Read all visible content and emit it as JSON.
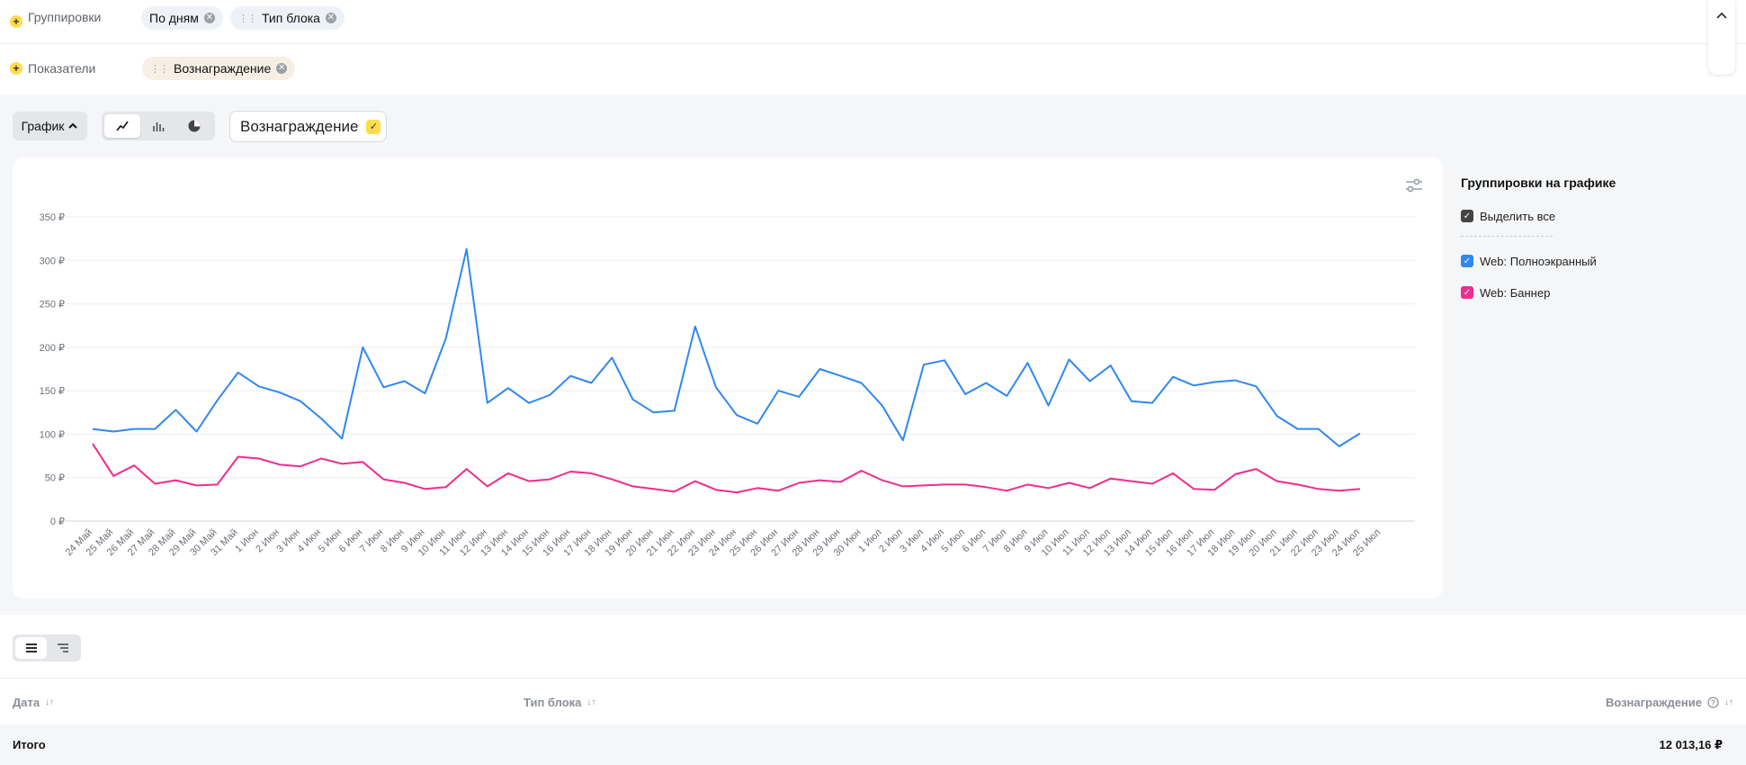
{
  "filters": {
    "groupings_label": "Группировки",
    "grouping_chips": [
      "По дням",
      "Тип блока"
    ],
    "metrics_label": "Показатели",
    "metric_chips": [
      "Вознаграждение"
    ]
  },
  "toolbar": {
    "view_label": "График",
    "chart_types": [
      "line-chart-icon",
      "bar-chart-icon",
      "pie-chart-icon"
    ],
    "active_chart_type": "line",
    "metric_toggle_label": "Вознаграждение"
  },
  "legend": {
    "title": "Группировки на графике",
    "select_all": "Выделить все",
    "items": [
      {
        "label": "Web: Полноэкранный",
        "color": "#2f88f0"
      },
      {
        "label": "Web: Баннер",
        "color": "#f02c8f"
      }
    ]
  },
  "chart_data": {
    "type": "line",
    "title": "",
    "xlabel": "",
    "ylabel": "",
    "ylim": [
      0,
      350
    ],
    "y_ticks": [
      "0 ₽",
      "50 ₽",
      "100 ₽",
      "150 ₽",
      "200 ₽",
      "250 ₽",
      "300 ₽",
      "350 ₽"
    ],
    "x": [
      "24 Май",
      "25 Май",
      "26 Май",
      "27 Май",
      "28 Май",
      "29 Май",
      "30 Май",
      "31 Май",
      "1 Июн",
      "2 Июн",
      "3 Июн",
      "4 Июн",
      "5 Июн",
      "6 Июн",
      "7 Июн",
      "8 Июн",
      "9 Июн",
      "10 Июн",
      "11 Июн",
      "12 Июн",
      "13 Июн",
      "14 Июн",
      "15 Июн",
      "16 Июн",
      "17 Июн",
      "18 Июн",
      "19 Июн",
      "20 Июн",
      "21 Июн",
      "22 Июн",
      "23 Июн",
      "24 Июн",
      "25 Июн",
      "26 Июн",
      "27 Июн",
      "28 Июн",
      "29 Июн",
      "30 Июн",
      "1 Июл",
      "2 Июл",
      "3 Июл",
      "4 Июл",
      "5 Июл",
      "6 Июл",
      "7 Июл",
      "8 Июл",
      "9 Июл",
      "10 Июл",
      "11 Июл",
      "12 Июл",
      "13 Июл",
      "14 Июл",
      "15 Июл",
      "16 Июл",
      "17 Июл",
      "18 Июл",
      "19 Июл",
      "20 Июл",
      "21 Июл",
      "22 Июл",
      "23 Июл",
      "24 Июл",
      "25 Июл"
    ],
    "grid": true,
    "legend_position": "right",
    "series": [
      {
        "name": "Web: Полноэкранный",
        "color": "#2f88f0",
        "values": [
          106,
          103,
          106,
          106,
          128,
          103,
          139,
          171,
          155,
          148,
          138,
          118,
          95,
          200,
          154,
          161,
          147,
          210,
          313,
          136,
          153,
          136,
          145,
          167,
          159,
          188,
          140,
          125,
          127,
          224,
          154,
          122,
          112,
          150,
          143,
          175,
          167,
          159,
          133,
          93,
          180,
          185,
          146,
          159,
          144,
          182,
          133,
          186,
          161,
          179,
          138,
          136,
          166,
          156,
          160,
          162,
          155,
          121,
          106,
          106,
          86,
          101,
          null
        ]
      },
      {
        "name": "Web: Баннер",
        "color": "#f02c8f",
        "values": [
          89,
          52,
          64,
          43,
          47,
          41,
          42,
          74,
          72,
          65,
          63,
          72,
          66,
          68,
          48,
          44,
          37,
          39,
          60,
          40,
          55,
          46,
          48,
          57,
          55,
          48,
          40,
          37,
          34,
          46,
          36,
          33,
          38,
          35,
          44,
          47,
          45,
          58,
          47,
          40,
          41,
          42,
          42,
          39,
          35,
          42,
          38,
          44,
          38,
          49,
          46,
          43,
          55,
          37,
          36,
          54,
          60,
          46,
          42,
          37,
          35,
          37,
          null
        ]
      }
    ]
  },
  "table": {
    "view_toggle": [
      "list-icon",
      "tree-icon"
    ],
    "columns": [
      {
        "label": "Дата"
      },
      {
        "label": "Тип блока"
      },
      {
        "label": "Вознаграждение"
      }
    ],
    "total_label": "Итого",
    "total_value": "12 013,16 ₽"
  }
}
